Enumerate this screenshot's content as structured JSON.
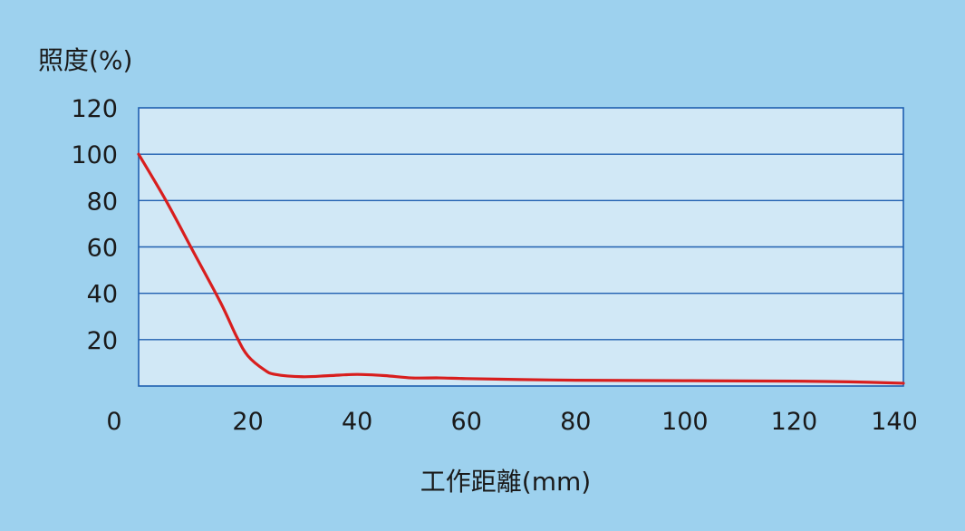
{
  "chart_data": {
    "type": "line",
    "title": "",
    "xlabel": "工作距離(mm)",
    "ylabel": "照度(%)",
    "xlim": [
      0,
      140
    ],
    "ylim": [
      0,
      120
    ],
    "x_ticks": [
      "0",
      "20",
      "40",
      "60",
      "80",
      "100",
      "120",
      "140"
    ],
    "y_ticks": [
      "20",
      "40",
      "60",
      "80",
      "100",
      "120"
    ],
    "grid": true,
    "series": [
      {
        "color": "#d81e1e",
        "x": [
          0,
          5,
          10,
          15,
          18,
          20,
          23,
          25,
          30,
          35,
          40,
          45,
          50,
          55,
          60,
          70,
          80,
          90,
          100,
          110,
          120,
          130,
          140
        ],
        "y": [
          100,
          80,
          58,
          36,
          21,
          13,
          7,
          5,
          4,
          4.5,
          5,
          4.5,
          3.5,
          3.5,
          3.2,
          2.8,
          2.5,
          2.4,
          2.3,
          2.2,
          2.1,
          1.8,
          1.2
        ]
      }
    ],
    "colors": {
      "page_background": "#9dd1ee",
      "plot_background": "#d1e8f6",
      "gridline": "#1f5fb0",
      "frame": "#1f5fb0",
      "line": "#d81e1e",
      "text": "#1a1a1a"
    }
  }
}
